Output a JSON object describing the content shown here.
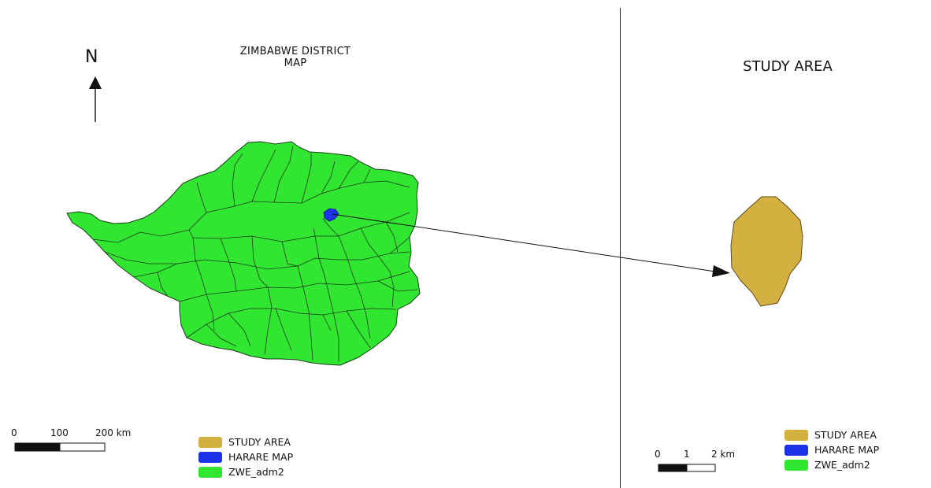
{
  "left_panel": {
    "title_line1": "ZIMBABWE DISTRICT",
    "title_line2": "MAP",
    "north": "N",
    "scale": {
      "labels": [
        "0",
        "100",
        "200 km"
      ]
    },
    "legend": [
      {
        "label": "STUDY AREA",
        "color": "#d4b040"
      },
      {
        "label": "HARARE MAP",
        "color": "#1c32e6"
      },
      {
        "label": "ZWE_adm2",
        "color": "#31e631"
      }
    ]
  },
  "right_panel": {
    "title": "STUDY AREA",
    "scale": {
      "labels": [
        "0",
        "1",
        "2 km"
      ]
    },
    "legend": [
      {
        "label": "STUDY AREA",
        "color": "#d4b040"
      },
      {
        "label": "HARARE MAP",
        "color": "#1c32e6"
      },
      {
        "label": "ZWE_adm2",
        "color": "#31e631"
      }
    ]
  },
  "colors": {
    "zimbabwe_fill": "#31e631",
    "harare_fill": "#1c32e6",
    "study_area_fill": "#d4b040",
    "boundary": "#1a3a1a"
  }
}
